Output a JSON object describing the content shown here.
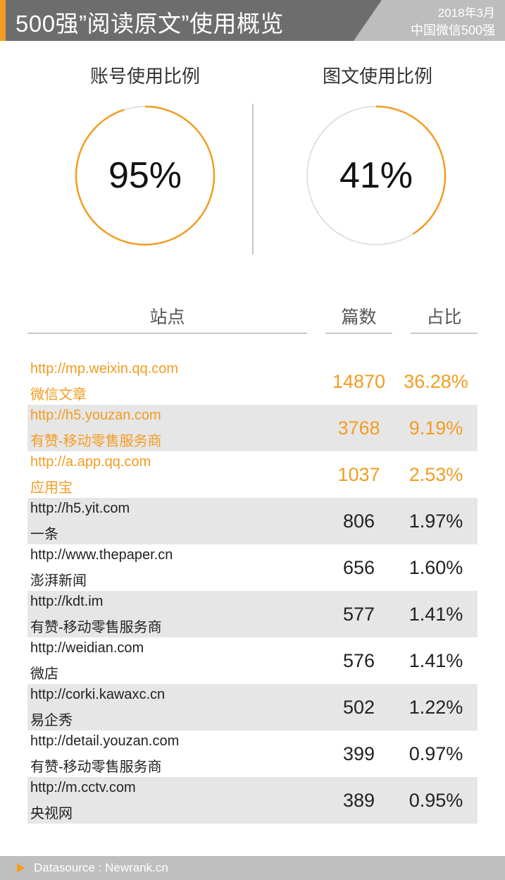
{
  "header": {
    "title": "500强”阅读原文”使用概览",
    "date": "2018年3月",
    "subtitle": "中国微信500强",
    "accent_color": "#f39c21"
  },
  "rings": [
    {
      "title": "账号使用比例",
      "label": "95%",
      "value": 0.95
    },
    {
      "title": "图文使用比例",
      "label": "41%",
      "value": 0.41
    }
  ],
  "table_headers": {
    "site": "站点",
    "count": "篇数",
    "share": "占比"
  },
  "chart_data": [
    {
      "type": "pie",
      "title": "账号使用比例",
      "values": [
        95,
        5
      ],
      "categories": [
        "",
        ""
      ]
    },
    {
      "type": "pie",
      "title": "图文使用比例",
      "values": [
        41,
        59
      ],
      "categories": [
        "",
        ""
      ]
    },
    {
      "type": "table",
      "columns": [
        "站点",
        "篇数",
        "占比"
      ],
      "rows": [
        {
          "url": "http://mp.weixin.qq.com",
          "name": "微信文章",
          "count": "14870",
          "share": "36.28%"
        },
        {
          "url": "http://h5.youzan.com",
          "name": "有赞-移动零售服务商",
          "count": "3768",
          "share": "9.19%"
        },
        {
          "url": "http://a.app.qq.com",
          "name": "应用宝",
          "count": "1037",
          "share": "2.53%"
        },
        {
          "url": "http://h5.yit.com",
          "name": "一条",
          "count": "806",
          "share": "1.97%"
        },
        {
          "url": "http://www.thepaper.cn",
          "name": "澎湃新闻",
          "count": "656",
          "share": "1.60%"
        },
        {
          "url": "http://kdt.im",
          "name": "有赞-移动零售服务商",
          "count": "577",
          "share": "1.41%"
        },
        {
          "url": "http://weidian.com",
          "name": "微店",
          "count": "576",
          "share": "1.41%"
        },
        {
          "url": "http://corki.kawaxc.cn",
          "name": "易企秀",
          "count": "502",
          "share": "1.22%"
        },
        {
          "url": "http://detail.youzan.com",
          "name": "有赞-移动零售服务商",
          "count": "399",
          "share": "0.97%"
        },
        {
          "url": "http://m.cctv.com",
          "name": "央视网",
          "count": "389",
          "share": "0.95%"
        }
      ],
      "highlight_top": 3
    }
  ],
  "footer": {
    "source": "Datasource : Newrank.cn"
  }
}
